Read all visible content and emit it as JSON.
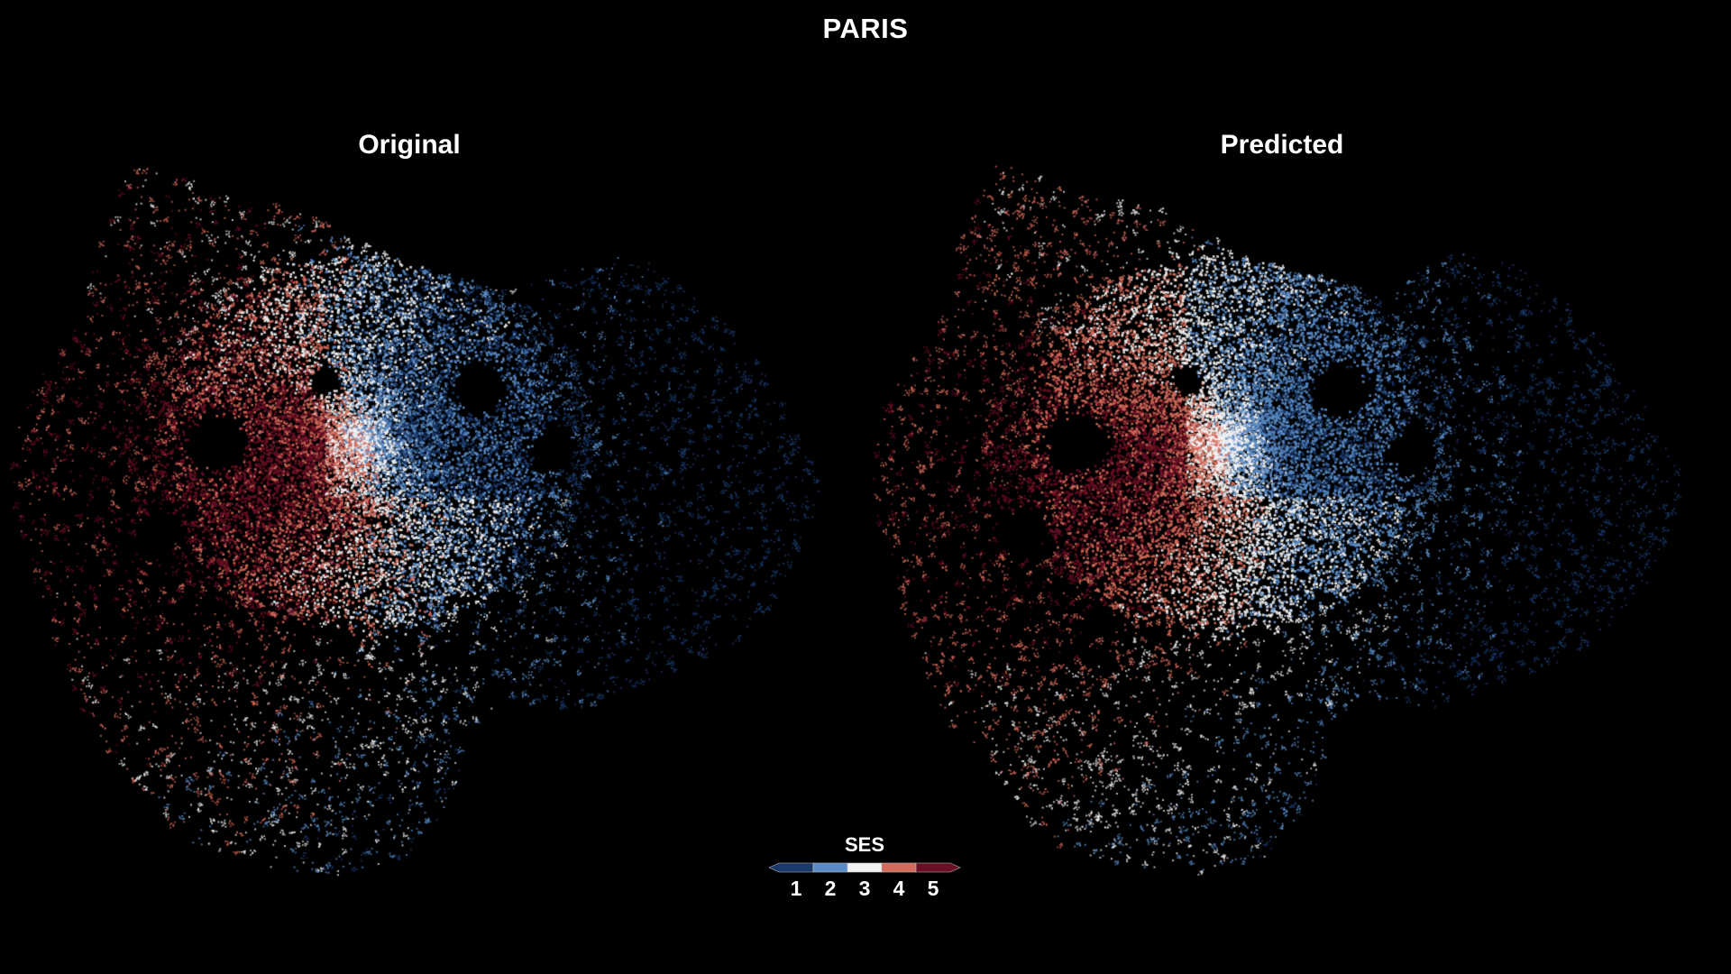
{
  "title": "PARIS",
  "panels": [
    {
      "label": "Original",
      "seed": 12345,
      "variant": "original"
    },
    {
      "label": "Predicted",
      "seed": 67891,
      "variant": "predicted"
    }
  ],
  "legend": {
    "title": "SES",
    "classes": [
      {
        "label": "1",
        "color": "#1b3a6b"
      },
      {
        "label": "2",
        "color": "#5b8cc7"
      },
      {
        "label": "3",
        "color": "#f2f2f2"
      },
      {
        "label": "4",
        "color": "#d36a5b"
      },
      {
        "label": "5",
        "color": "#6b0f24"
      }
    ]
  },
  "colors": {
    "background": "#000000",
    "text": "#ffffff"
  }
}
